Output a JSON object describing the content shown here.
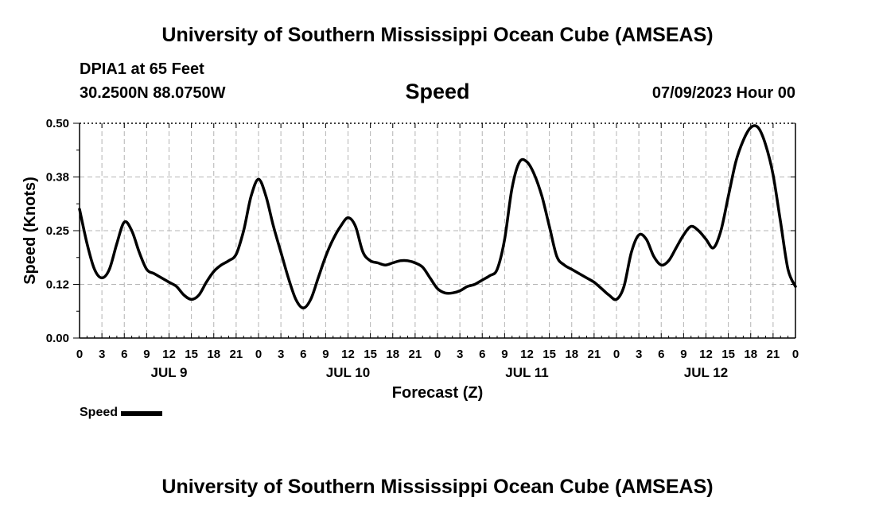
{
  "header": {
    "title": "University of Southern Mississippi Ocean Cube (AMSEAS)",
    "station": "DPIA1 at 65 Feet",
    "coords": "30.2500N  88.0750W",
    "variable": "Speed",
    "datetime": "07/09/2023 Hour 00"
  },
  "footer": {
    "title": "University of Southern Mississippi Ocean Cube (AMSEAS)"
  },
  "legend": {
    "label": "Speed"
  },
  "chart_data": {
    "type": "line",
    "title": "Speed",
    "xlabel": "Forecast (Z)",
    "ylabel": "Speed (Knots)",
    "ylim": [
      0,
      0.5
    ],
    "xlim": [
      0,
      96
    ],
    "yticks": [
      0,
      0.125,
      0.25,
      0.375,
      0.5
    ],
    "ytick_labels": [
      "0.00",
      "0.12",
      "0.25",
      "0.38",
      "0.50"
    ],
    "xticks": [
      0,
      3,
      6,
      9,
      12,
      15,
      18,
      21,
      24,
      27,
      30,
      33,
      36,
      39,
      42,
      45,
      48,
      51,
      54,
      57,
      60,
      63,
      66,
      69,
      72,
      75,
      78,
      81,
      84,
      87,
      90,
      93,
      96
    ],
    "xtick_labels": [
      "0",
      "3",
      "6",
      "9",
      "12",
      "15",
      "18",
      "21",
      "0",
      "3",
      "6",
      "9",
      "12",
      "15",
      "18",
      "21",
      "0",
      "3",
      "6",
      "9",
      "12",
      "15",
      "18",
      "21",
      "0",
      "3",
      "6",
      "9",
      "12",
      "15",
      "18",
      "21",
      "0"
    ],
    "day_labels": [
      {
        "label": "JUL 9",
        "at": 12
      },
      {
        "label": "JUL 10",
        "at": 36
      },
      {
        "label": "JUL 11",
        "at": 60
      },
      {
        "label": "JUL 12",
        "at": 84
      }
    ],
    "grid": true,
    "series": [
      {
        "name": "Speed",
        "color": "#000000",
        "x": [
          0,
          1,
          2,
          3,
          4,
          5,
          6,
          7,
          8,
          9,
          10,
          11,
          12,
          13,
          14,
          15,
          16,
          17,
          18,
          19,
          20,
          21,
          22,
          23,
          24,
          25,
          26,
          27,
          28,
          29,
          30,
          31,
          32,
          33,
          34,
          35,
          36,
          37,
          38,
          39,
          40,
          41,
          42,
          43,
          44,
          45,
          46,
          47,
          48,
          49,
          50,
          51,
          52,
          53,
          54,
          55,
          56,
          57,
          58,
          59,
          60,
          61,
          62,
          63,
          64,
          65,
          66,
          67,
          68,
          69,
          70,
          71,
          72,
          73,
          74,
          75,
          76,
          77,
          78,
          79,
          80,
          81,
          82,
          83,
          84,
          85,
          86,
          87,
          88,
          89,
          90,
          91,
          92,
          93,
          94,
          95,
          96
        ],
        "values": [
          0.3,
          0.22,
          0.16,
          0.14,
          0.16,
          0.22,
          0.27,
          0.25,
          0.2,
          0.16,
          0.15,
          0.14,
          0.13,
          0.12,
          0.1,
          0.09,
          0.1,
          0.13,
          0.155,
          0.17,
          0.18,
          0.195,
          0.25,
          0.33,
          0.37,
          0.33,
          0.26,
          0.2,
          0.14,
          0.09,
          0.07,
          0.09,
          0.14,
          0.19,
          0.23,
          0.26,
          0.28,
          0.26,
          0.2,
          0.18,
          0.175,
          0.17,
          0.175,
          0.18,
          0.18,
          0.175,
          0.165,
          0.14,
          0.115,
          0.105,
          0.105,
          0.11,
          0.12,
          0.125,
          0.135,
          0.145,
          0.16,
          0.23,
          0.35,
          0.41,
          0.41,
          0.38,
          0.33,
          0.26,
          0.19,
          0.17,
          0.16,
          0.15,
          0.14,
          0.13,
          0.115,
          0.1,
          0.09,
          0.12,
          0.2,
          0.24,
          0.23,
          0.19,
          0.17,
          0.18,
          0.21,
          0.24,
          0.26,
          0.25,
          0.23,
          0.21,
          0.25,
          0.33,
          0.41,
          0.46,
          0.49,
          0.49,
          0.45,
          0.38,
          0.27,
          0.16,
          0.12
        ]
      }
    ]
  }
}
